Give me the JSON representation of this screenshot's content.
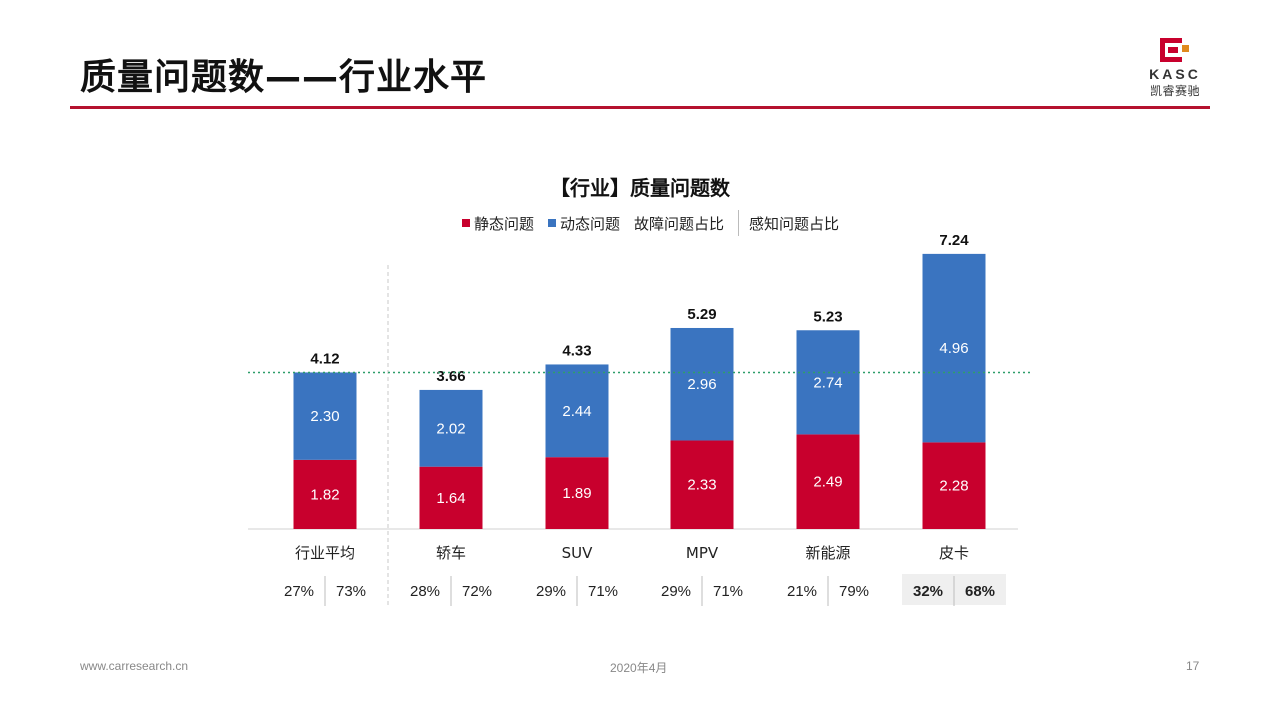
{
  "page": {
    "title": "质量问题数——行业水平",
    "logo_word": "KASC",
    "logo_cn": "凯睿赛驰"
  },
  "legend": {
    "static": "静态问题",
    "dynamic": "动态问题",
    "fault_share": "故障问题占比",
    "perception_share": "感知问题占比"
  },
  "colors": {
    "static": "#c8002d",
    "dynamic": "#3a74c0",
    "accent": "#b5122e",
    "average_line": "#2e9e6a"
  },
  "chart_data": {
    "type": "bar",
    "stacked": true,
    "title": "【行业】质量问题数",
    "categories": [
      "行业平均",
      "轿车",
      "SUV",
      "MPV",
      "新能源",
      "皮卡"
    ],
    "series": [
      {
        "name": "静态问题",
        "values": [
          1.82,
          1.64,
          1.89,
          2.33,
          2.49,
          2.28
        ]
      },
      {
        "name": "动态问题",
        "values": [
          2.3,
          2.02,
          2.44,
          2.96,
          2.74,
          4.96
        ]
      }
    ],
    "totals": [
      "4.12",
      "3.66",
      "4.33",
      "5.29",
      "5.23",
      "7.24"
    ],
    "static_labels": [
      "1.82",
      "1.64",
      "1.89",
      "2.33",
      "2.49",
      "2.28"
    ],
    "dynamic_labels": [
      "2.30",
      "2.02",
      "2.44",
      "2.96",
      "2.74",
      "4.96"
    ],
    "fault_share": [
      "27%",
      "28%",
      "29%",
      "29%",
      "21%",
      "32%"
    ],
    "perception_share": [
      "73%",
      "72%",
      "71%",
      "71%",
      "79%",
      "68%"
    ],
    "highlight_index": 5,
    "reference_line": 4.12,
    "ylim": [
      0,
      7.5
    ],
    "xlabel": "",
    "ylabel": ""
  },
  "footer": {
    "url": "www.carresearch.cn",
    "date": "2020年4月",
    "page": "17"
  }
}
